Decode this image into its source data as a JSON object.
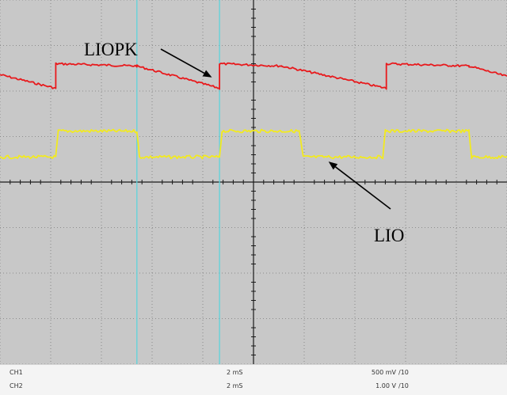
{
  "chart_data": {
    "type": "line",
    "title": "",
    "xlabel": "",
    "ylabel": "",
    "grid": true,
    "divisions": {
      "x": 10,
      "y": 8
    },
    "xlim": [
      0,
      10
    ],
    "ylim": [
      -4,
      4
    ],
    "x_unit": "div",
    "y_unit": "div",
    "background_color": "#c8c8c8",
    "grid_color": "#7a7a7a",
    "axis_color": "#1a1a1a",
    "series": [
      {
        "color": "#e8191c",
        "x": [
          0,
          1.1,
          1.1,
          2.7,
          4.33,
          4.33,
          5.55,
          7.62,
          7.62,
          9.25,
          10
        ],
        "y": [
          2.36,
          2.06,
          2.6,
          2.55,
          2.06,
          2.6,
          2.55,
          2.06,
          2.6,
          2.55,
          2.32
        ]
      },
      {
        "color": "#f2ea1f",
        "x": [
          0,
          1.1,
          1.15,
          2.7,
          2.75,
          4.33,
          4.38,
          5.9,
          5.98,
          7.55,
          7.6,
          9.25,
          9.3,
          10
        ],
        "y": [
          0.55,
          0.55,
          1.12,
          1.12,
          0.55,
          0.55,
          1.12,
          1.12,
          0.55,
          0.55,
          1.12,
          1.12,
          0.55,
          0.55
        ]
      }
    ],
    "cursors": [
      {
        "color": "#5fd3dc",
        "x": 2.7
      },
      {
        "color": "#5fd3dc",
        "x": 4.33
      }
    ],
    "annotations": [
      {
        "text": "LIOPK",
        "target_series": 0,
        "target": [
          4.18,
          2.3
        ]
      },
      {
        "text": "LIO",
        "target_series": 1,
        "target": [
          6.48,
          0.45
        ]
      }
    ]
  },
  "status_rows": [
    {
      "channel": "CH1",
      "time_div": "2 mS",
      "volt_div": "500 mV",
      "probe": "/10"
    },
    {
      "channel": "CH2",
      "time_div": "2 mS",
      "volt_div": "1.00 V",
      "probe": "/10"
    }
  ]
}
